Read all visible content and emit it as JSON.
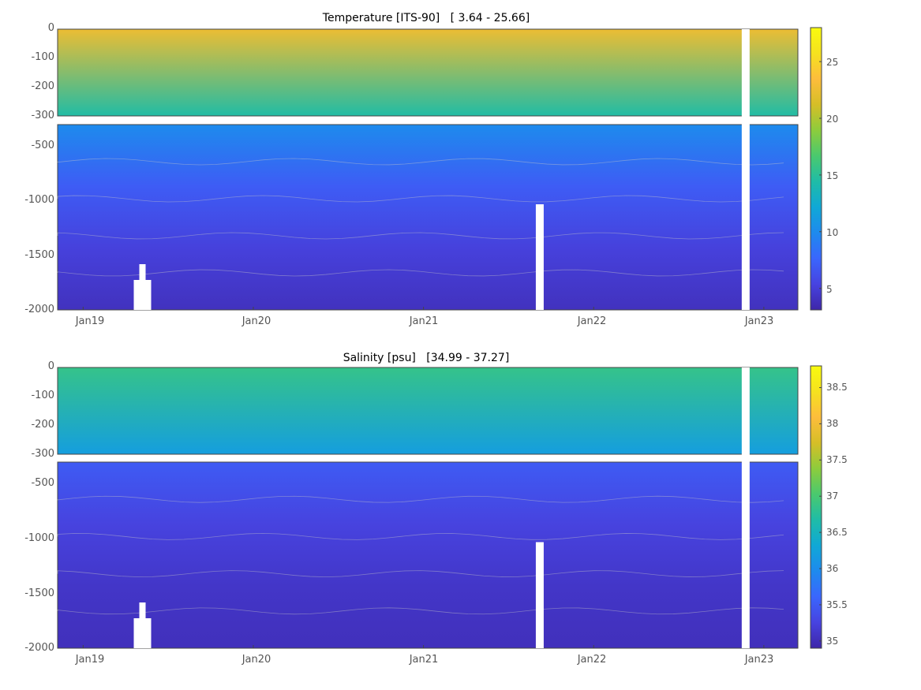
{
  "chart_data": [
    {
      "type": "heatmap",
      "title": "Temperature [ITS-90]   [ 3.64 - 25.66]",
      "x_ticks": [
        "Jan19",
        "Jan20",
        "Jan21",
        "Jan22",
        "Jan23"
      ],
      "x_tick_years": [
        2019,
        2020,
        2021,
        2022,
        2023
      ],
      "x_range": [
        2018.85,
        2023.2
      ],
      "upper_y_ticks": [
        "0",
        "-100",
        "-200",
        "-300"
      ],
      "upper_ylim": [
        -300,
        0
      ],
      "lower_y_ticks": [
        "-500",
        "-1000",
        "-1500",
        "-2000"
      ],
      "lower_ylim": [
        -2000,
        -320
      ],
      "colorbar_ticks": [
        "5",
        "10",
        "15",
        "20",
        "25"
      ],
      "colorbar_values": [
        5,
        10,
        15,
        20,
        25
      ],
      "clim": [
        3.1,
        28
      ],
      "colormap": [
        "#3e26a8",
        "#4743e0",
        "#3a66fd",
        "#1e8aee",
        "#10a8d6",
        "#1fbca7",
        "#4ac96e",
        "#8dcc3c",
        "#d6be27",
        "#fdbd3c",
        "#f5e21f",
        "#f9fb0e"
      ],
      "surface_value": 22.5,
      "mid_value": 14.5,
      "deep_values": [
        10,
        7,
        5.2,
        4.0
      ]
    },
    {
      "type": "heatmap",
      "title": "Salinity [psu]   [34.99 - 37.27]",
      "x_ticks": [
        "Jan19",
        "Jan20",
        "Jan21",
        "Jan22",
        "Jan23"
      ],
      "x_tick_years": [
        2019,
        2020,
        2021,
        2022,
        2023
      ],
      "x_range": [
        2018.85,
        2023.2
      ],
      "upper_y_ticks": [
        "0",
        "-100",
        "-200",
        "-300"
      ],
      "upper_ylim": [
        -300,
        0
      ],
      "lower_y_ticks": [
        "-500",
        "-1000",
        "-1500",
        "-2000"
      ],
      "lower_ylim": [
        -2000,
        -320
      ],
      "colorbar_ticks": [
        "35",
        "35.5",
        "36",
        "36.5",
        "37",
        "37.5",
        "38",
        "38.5"
      ],
      "colorbar_values": [
        35,
        35.5,
        36,
        36.5,
        37,
        37.5,
        38,
        38.5
      ],
      "clim": [
        34.9,
        38.8
      ],
      "colormap": [
        "#3e26a8",
        "#4743e0",
        "#3a66fd",
        "#1e8aee",
        "#10a8d6",
        "#1fbca7",
        "#4ac96e",
        "#8dcc3c",
        "#d6be27",
        "#fdbd3c",
        "#f5e21f",
        "#f9fb0e"
      ],
      "surface_value": 36.85,
      "mid_value": 36.2,
      "deep_values": [
        35.5,
        35.25,
        35.1,
        35.02
      ]
    }
  ]
}
